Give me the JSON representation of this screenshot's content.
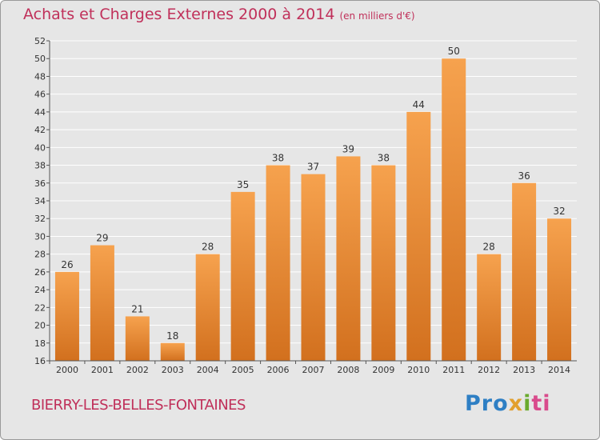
{
  "chart_data": {
    "type": "bar",
    "title": "Achats et Charges Externes 2000 à 2014",
    "unit_note": "(en milliers d'€)",
    "categories": [
      "2000",
      "2001",
      "2002",
      "2003",
      "2004",
      "2005",
      "2006",
      "2007",
      "2008",
      "2009",
      "2010",
      "2011",
      "2012",
      "2013",
      "2014"
    ],
    "values": [
      26,
      29,
      21,
      18,
      28,
      35,
      38,
      37,
      39,
      38,
      44,
      50,
      28,
      36,
      32
    ],
    "ylim": [
      16,
      52
    ],
    "yticks": [
      16,
      18,
      20,
      22,
      24,
      26,
      28,
      30,
      32,
      34,
      36,
      38,
      40,
      42,
      44,
      46,
      48,
      50,
      52
    ],
    "grid": true,
    "bar_color_top": "#f6a24e",
    "bar_color_bottom": "#d2701e",
    "xlabel": "",
    "ylabel": ""
  },
  "footer": {
    "commune": "BIERRY-LES-BELLES-FONTAINES",
    "logo_parts": [
      "Pro",
      "x",
      "i",
      "ti"
    ]
  },
  "colors": {
    "title": "#c0305a",
    "background": "#e6e6e6",
    "grid": "#ffffff"
  }
}
